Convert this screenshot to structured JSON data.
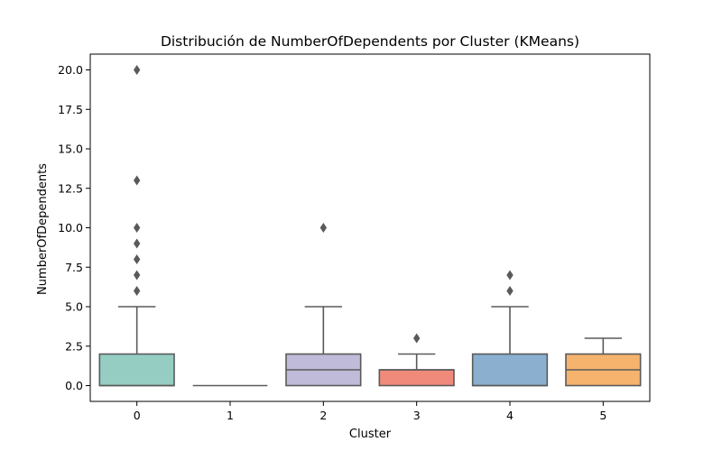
{
  "chart_data": {
    "type": "box",
    "title": "Distribución de NumberOfDependents por Cluster (KMeans)",
    "xlabel": "Cluster",
    "ylabel": "NumberOfDependents",
    "categories": [
      "0",
      "1",
      "2",
      "3",
      "4",
      "5"
    ],
    "ylim": [
      -1,
      21
    ],
    "yticks": [
      "0.0",
      "2.5",
      "5.0",
      "7.5",
      "10.0",
      "12.5",
      "15.0",
      "17.5",
      "20.0"
    ],
    "grid": false,
    "boxes": [
      {
        "category": "0",
        "min": 0,
        "q1": 0,
        "median": 0,
        "q3": 2,
        "max": 5,
        "color": "#95cdc2",
        "outliers": [
          6,
          7,
          8,
          9,
          10,
          13,
          20
        ]
      },
      {
        "category": "1",
        "min": 0,
        "q1": 0,
        "median": 0,
        "q3": 0,
        "max": 0,
        "color": "#ffffb9",
        "outliers": []
      },
      {
        "category": "2",
        "min": 0,
        "q1": 0,
        "median": 1,
        "q3": 2,
        "max": 5,
        "color": "#bfbbd8",
        "outliers": [
          10
        ]
      },
      {
        "category": "3",
        "min": 0,
        "q1": 0,
        "median": 1,
        "q3": 1,
        "max": 2,
        "color": "#ef8a7a",
        "outliers": [
          3
        ]
      },
      {
        "category": "4",
        "min": 0,
        "q1": 0,
        "median": 0,
        "q3": 2,
        "max": 5,
        "color": "#8aafcf",
        "outliers": [
          6,
          7
        ]
      },
      {
        "category": "5",
        "min": 0,
        "q1": 0,
        "median": 1,
        "q3": 2,
        "max": 3,
        "color": "#f5b36e",
        "outliers": []
      }
    ]
  }
}
